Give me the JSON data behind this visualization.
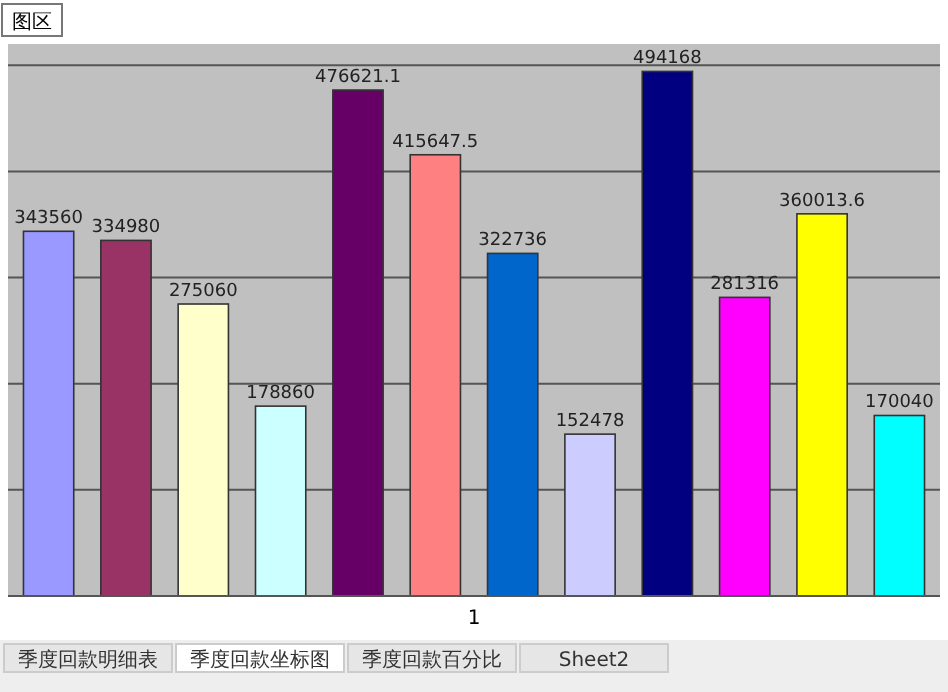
{
  "chart_data": {
    "type": "bar",
    "xlabel": "1",
    "categories": [
      null,
      null,
      null,
      null,
      null,
      null,
      null,
      null,
      null,
      null,
      null,
      null
    ],
    "values": [
      343560,
      334980,
      275060,
      178860,
      476621.1,
      415647.5,
      322736,
      152478,
      494168,
      281316,
      360013.6,
      170040
    ],
    "colors": [
      "#9999ff",
      "#993366",
      "#ffffcc",
      "#ccffff",
      "#660066",
      "#ff8080",
      "#0066cc",
      "#ccccff",
      "#000080",
      "#ff00ff",
      "#ffff00",
      "#00ffff"
    ],
    "ylim": [
      0,
      520000
    ],
    "yticks": [
      {
        "value": 0,
        "label": null
      },
      {
        "value": 100000,
        "label": null
      },
      {
        "value": 200000,
        "label": null
      },
      {
        "value": 300000,
        "label": null
      },
      {
        "value": 400000,
        "label": null
      },
      {
        "value": 500000,
        "label": null
      }
    ],
    "grid": "y",
    "data_labels": true,
    "annotations": [
      "图区",
      "季度回款明细表",
      "季度回款坐标图",
      "季度回款百分比",
      "Sheet2"
    ]
  }
}
